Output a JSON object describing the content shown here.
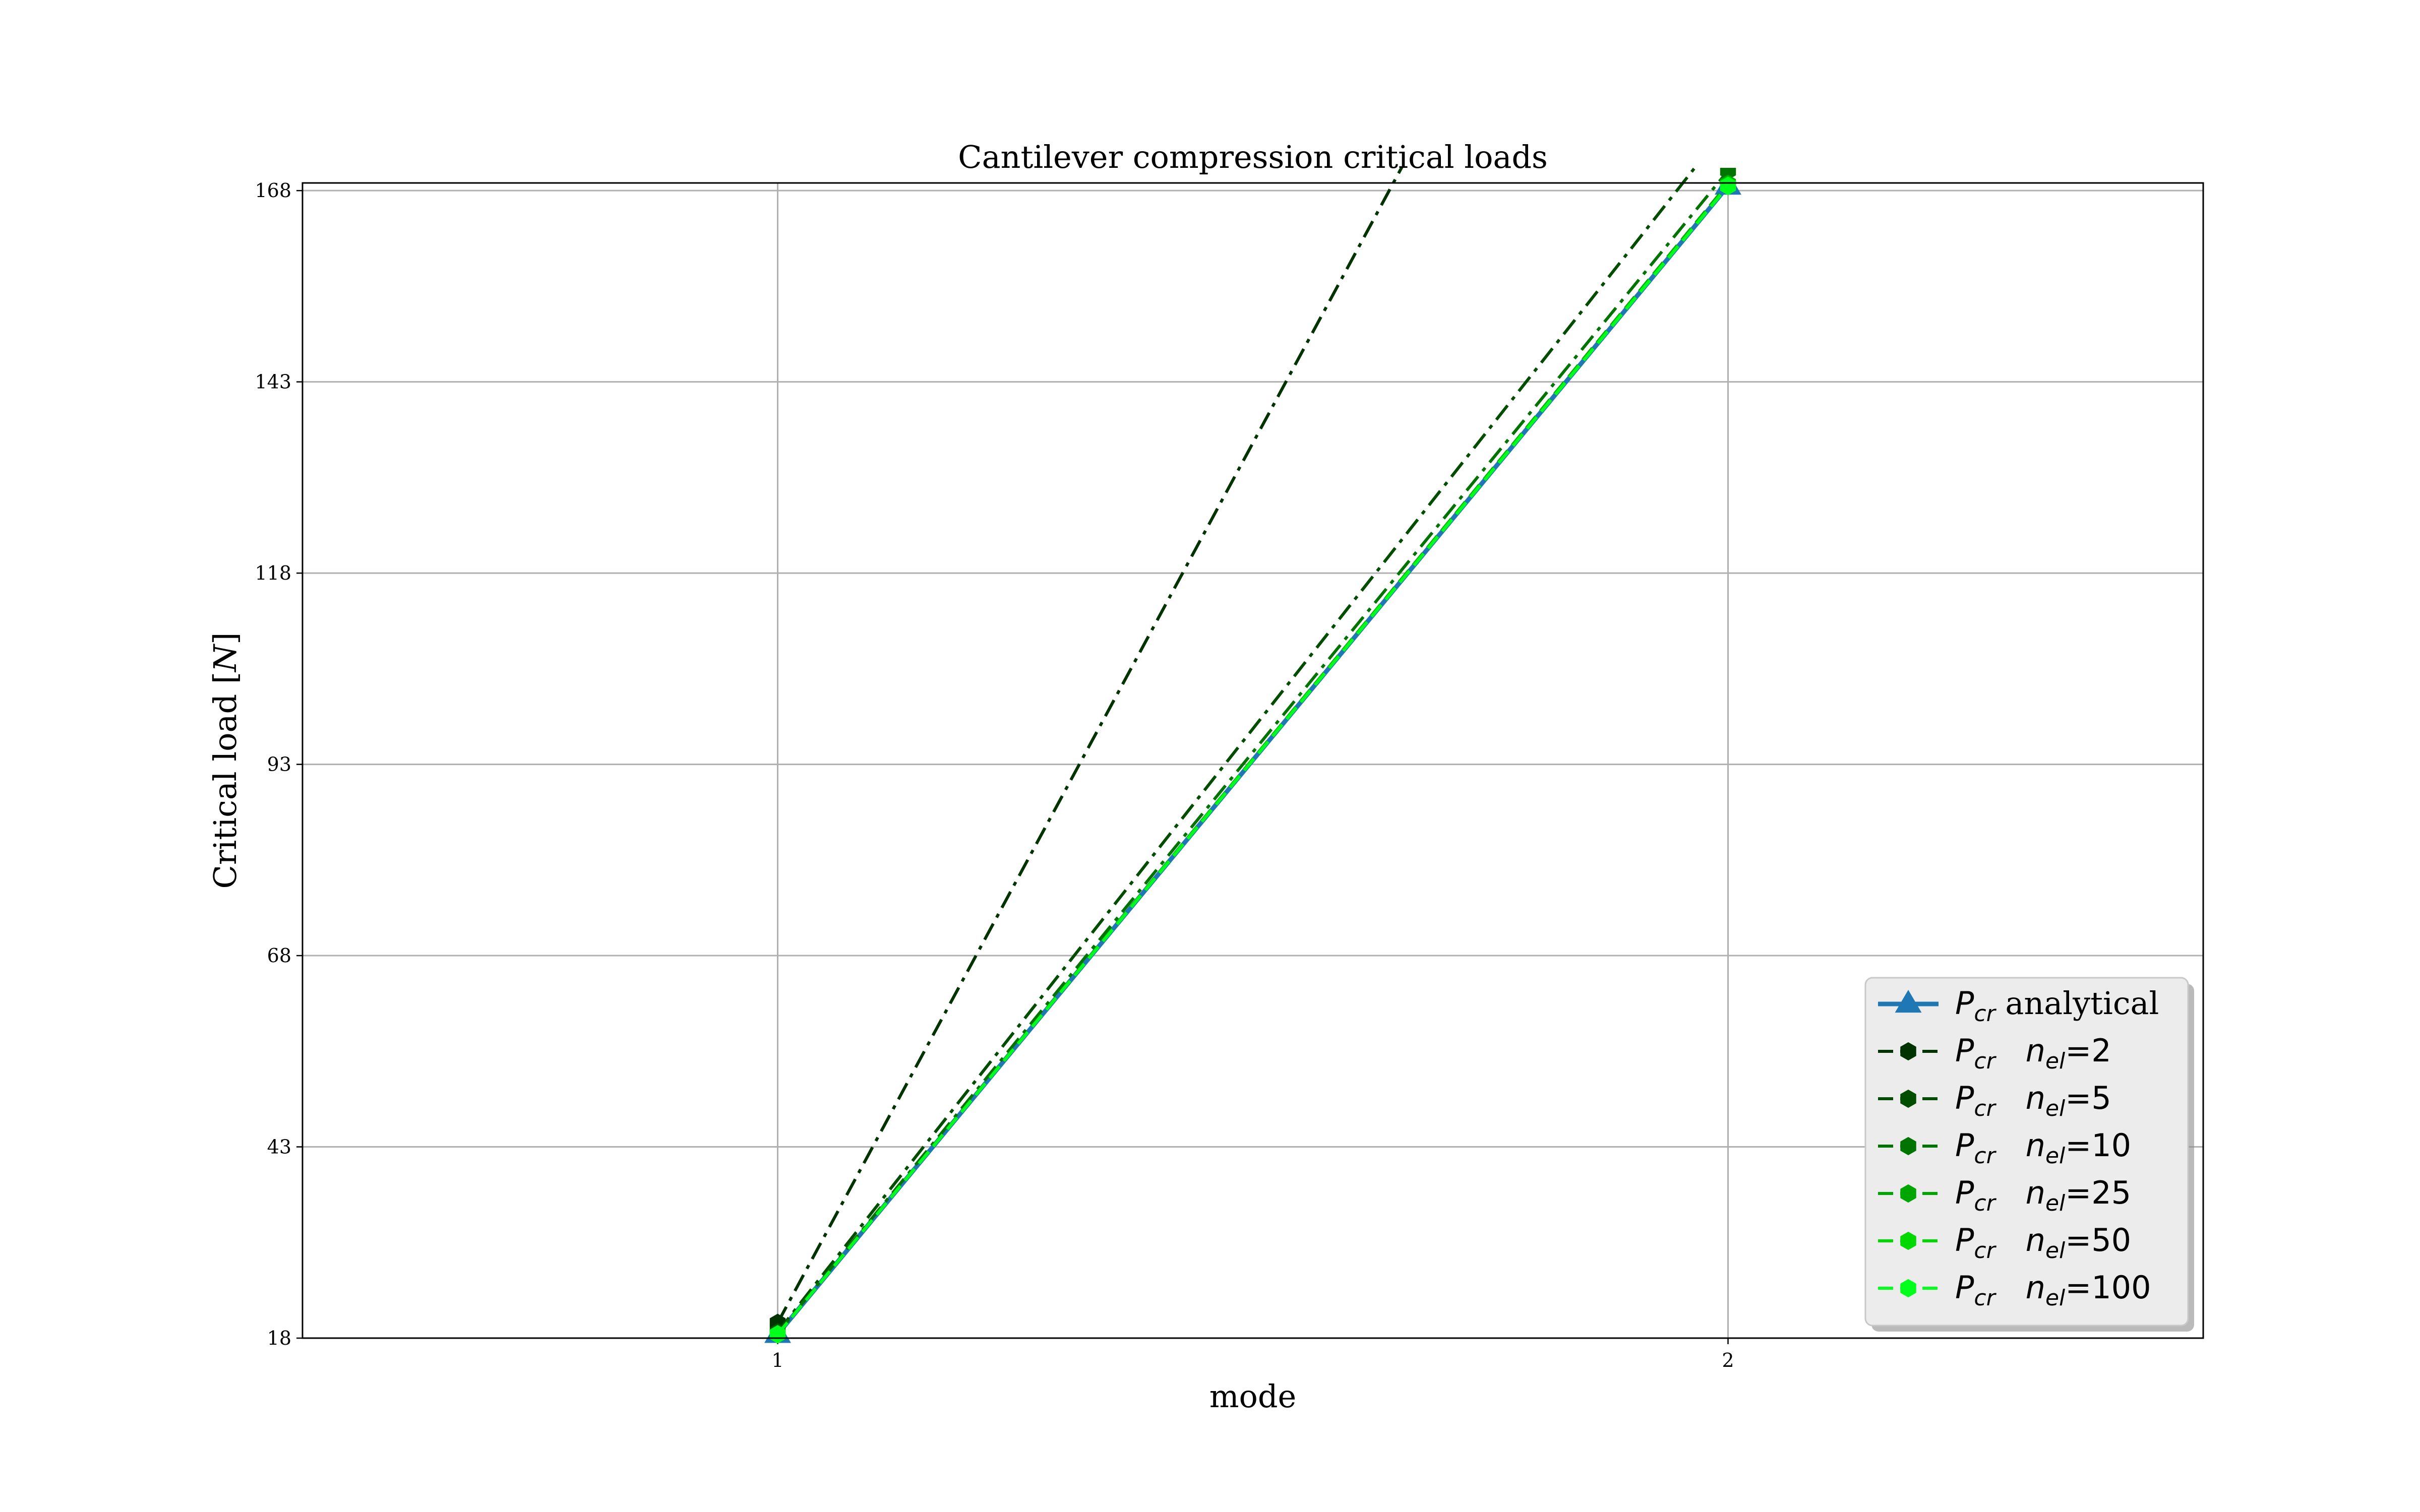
{
  "chart_data": {
    "type": "line",
    "title": "Cantilever compression critical loads",
    "xlabel": "mode",
    "ylabel": "Critical load [N]",
    "x": [
      1,
      2
    ],
    "x_ticks": [
      "1",
      "2"
    ],
    "y_ticks": [
      "18",
      "43",
      "68",
      "93",
      "118",
      "143",
      "168"
    ],
    "xlim": [
      0.5,
      2.5
    ],
    "ylim": [
      18,
      169
    ],
    "grid": true,
    "legend_position": "lower right",
    "series": [
      {
        "name": "P_cr analytical",
        "legend": {
          "base": "P",
          "sub": "cr",
          "rest": " analytical"
        },
        "values": [
          18.5,
          168.6
        ],
        "color": "#1f77b4",
        "line_style": "solid",
        "marker": "triangle"
      },
      {
        "name": "P_cr n_el=2",
        "legend": {
          "base": "P",
          "sub": "cr",
          "nbase": "n",
          "nsub": "el",
          "eq": "=2"
        },
        "values": [
          20.0,
          250.0
        ],
        "color": "#003300",
        "line_style": "dashdot",
        "marker": "hexagon"
      },
      {
        "name": "P_cr n_el=5",
        "legend": {
          "base": "P",
          "sub": "cr",
          "nbase": "n",
          "nsub": "el",
          "eq": "=5"
        },
        "values": [
          18.8,
          176.5
        ],
        "color": "#004d00",
        "line_style": "dashdot",
        "marker": "hexagon"
      },
      {
        "name": "P_cr n_el=10",
        "legend": {
          "base": "P",
          "sub": "cr",
          "nbase": "n",
          "nsub": "el",
          "eq": "=10"
        },
        "values": [
          18.6,
          170.6
        ],
        "color": "#007300",
        "line_style": "dashdot",
        "marker": "hexagon"
      },
      {
        "name": "P_cr n_el=25",
        "legend": {
          "base": "P",
          "sub": "cr",
          "nbase": "n",
          "nsub": "el",
          "eq": "=25"
        },
        "values": [
          18.5,
          168.9
        ],
        "color": "#00a600",
        "line_style": "dashed",
        "marker": "hexagon"
      },
      {
        "name": "P_cr n_el=50",
        "legend": {
          "base": "P",
          "sub": "cr",
          "nbase": "n",
          "nsub": "el",
          "eq": "=50"
        },
        "values": [
          18.5,
          168.7
        ],
        "color": "#00d900",
        "line_style": "dashed",
        "marker": "hexagon"
      },
      {
        "name": "P_cr n_el=100",
        "legend": {
          "base": "P",
          "sub": "cr",
          "nbase": "n",
          "nsub": "el",
          "eq": "=100"
        },
        "values": [
          18.5,
          168.6
        ],
        "color": "#00ff1a",
        "line_style": "dashed",
        "marker": "hexagon"
      }
    ]
  }
}
